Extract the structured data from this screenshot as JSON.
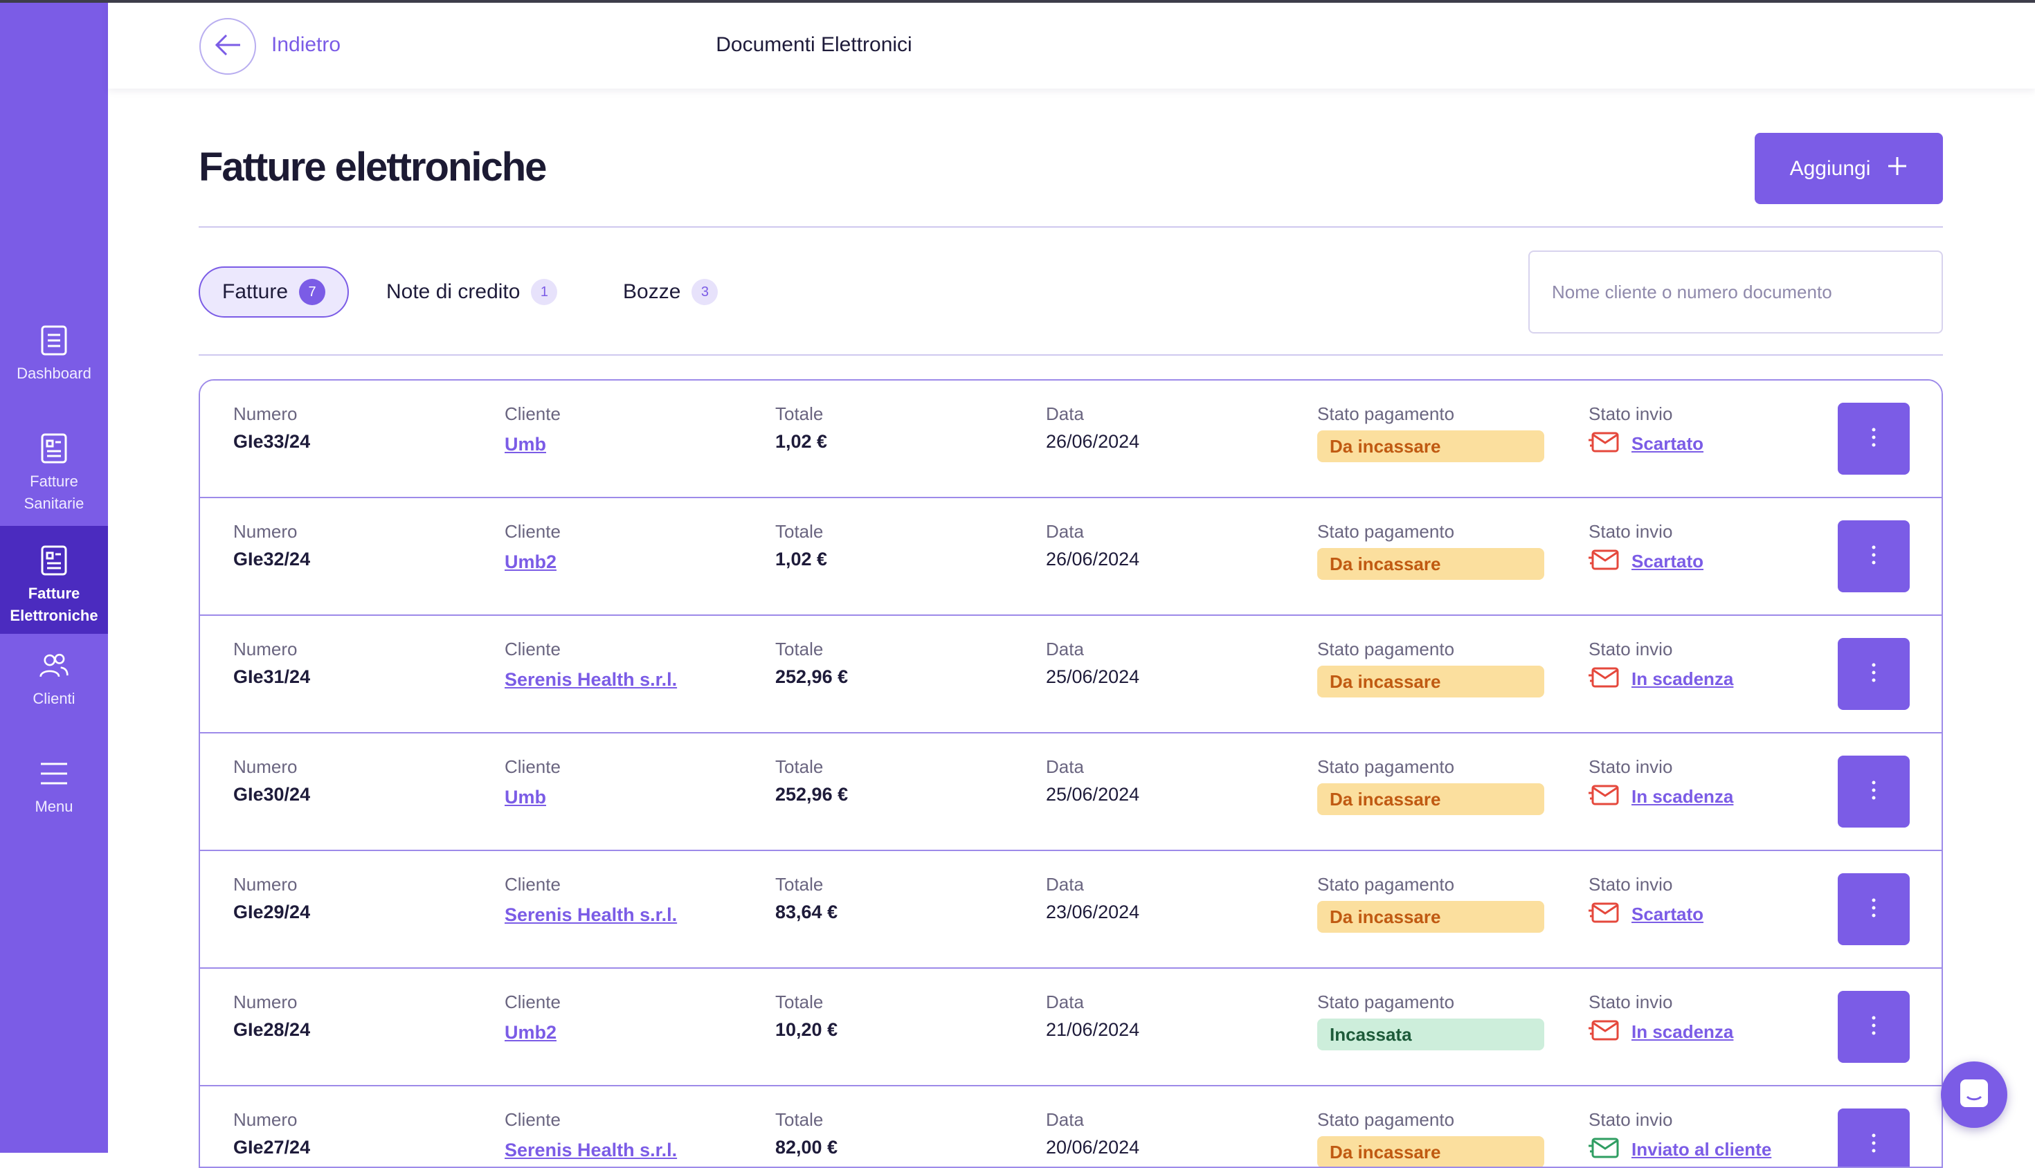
{
  "sidebar": {
    "items": [
      {
        "label": "Dashboard",
        "icon": "document-icon"
      },
      {
        "label": "Fatture Sanitarie",
        "icon": "invoice-icon"
      },
      {
        "label": "Fatture Elettroniche",
        "icon": "invoice-icon",
        "active": true
      },
      {
        "label": "Clienti",
        "icon": "users-icon"
      },
      {
        "label": "Menu",
        "icon": "hamburger-icon"
      }
    ]
  },
  "header": {
    "back_label": "Indietro",
    "title": "Documenti Elettronici"
  },
  "main": {
    "title": "Fatture elettroniche",
    "add_label": "Aggiungi",
    "tabs": [
      {
        "label": "Fatture",
        "count": "7",
        "active": true
      },
      {
        "label": "Note di credito",
        "count": "1"
      },
      {
        "label": "Bozze",
        "count": "3"
      }
    ],
    "search_placeholder": "Nome cliente o numero documento"
  },
  "table": {
    "labels": {
      "numero": "Numero",
      "cliente": "Cliente",
      "totale": "Totale",
      "data": "Data",
      "stato_pagamento": "Stato pagamento",
      "stato_invio": "Stato invio"
    },
    "rows": [
      {
        "numero": "GIe33/24",
        "cliente": "Umb",
        "totale": "1,02 €",
        "data": "26/06/2024",
        "pagamento": "Da incassare",
        "invio": "Scartato"
      },
      {
        "numero": "GIe32/24",
        "cliente": "Umb2",
        "totale": "1,02 €",
        "data": "26/06/2024",
        "pagamento": "Da incassare",
        "invio": "Scartato"
      },
      {
        "numero": "GIe31/24",
        "cliente": "Serenis Health s.r.l.",
        "totale": "252,96 €",
        "data": "25/06/2024",
        "pagamento": "Da incassare",
        "invio": "In scadenza"
      },
      {
        "numero": "GIe30/24",
        "cliente": "Umb",
        "totale": "252,96 €",
        "data": "25/06/2024",
        "pagamento": "Da incassare",
        "invio": "In scadenza"
      },
      {
        "numero": "GIe29/24",
        "cliente": "Serenis Health s.r.l.",
        "totale": "83,64 €",
        "data": "23/06/2024",
        "pagamento": "Da incassare",
        "invio": "Scartato"
      },
      {
        "numero": "GIe28/24",
        "cliente": "Umb2",
        "totale": "10,20 €",
        "data": "21/06/2024",
        "pagamento": "Incassata",
        "invio": "In scadenza"
      },
      {
        "numero": "GIe27/24",
        "cliente": "Serenis Health s.r.l.",
        "totale": "82,00 €",
        "data": "20/06/2024",
        "pagamento": "Da incassare",
        "invio": "Inviato al cliente"
      }
    ]
  },
  "colors": {
    "brand": "#7b5ce6",
    "sidebar_active": "#4b2bbf",
    "pending_bg": "#fbdf9e",
    "pending_text": "#c05a12",
    "paid_bg": "#cdeedb",
    "paid_text": "#1d5a39",
    "error_mail": "#e5483c",
    "ok_mail": "#2f9e62"
  }
}
